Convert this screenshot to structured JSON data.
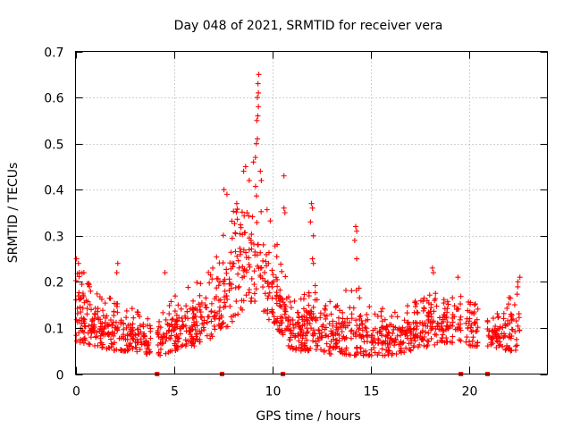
{
  "chart_data": {
    "type": "scatter",
    "title": "Day 048 of 2021, SRMTID for receiver vera",
    "xlabel": "GPS time / hours",
    "ylabel": "SRMTID / TECUs",
    "xlim": [
      0,
      24
    ],
    "ylim": [
      0,
      0.7
    ],
    "x_ticks": [
      0,
      5,
      10,
      15,
      20
    ],
    "x_tick_labels": [
      "0",
      "5",
      "10",
      "15",
      "20"
    ],
    "y_ticks": [
      0,
      0.1,
      0.2,
      0.3,
      0.4,
      0.5,
      0.6,
      0.7
    ],
    "y_tick_labels": [
      "0",
      "0.1",
      "0.2",
      "0.3",
      "0.4",
      "0.5",
      "0.6",
      "0.7"
    ],
    "grid": true,
    "marker": "+",
    "color": "#ff0000",
    "gap_markers": [
      4.15,
      7.45,
      10.55,
      19.6,
      20.95
    ],
    "envelope": [
      {
        "x": 0.0,
        "lo": 0.07,
        "hi": 0.25
      },
      {
        "x": 1.0,
        "lo": 0.06,
        "hi": 0.18
      },
      {
        "x": 2.0,
        "lo": 0.05,
        "hi": 0.16
      },
      {
        "x": 3.0,
        "lo": 0.05,
        "hi": 0.14
      },
      {
        "x": 3.8,
        "lo": 0.04,
        "hi": 0.12
      },
      {
        "x": 4.3,
        "lo": 0.04,
        "hi": 0.13
      },
      {
        "x": 5.0,
        "lo": 0.05,
        "hi": 0.17
      },
      {
        "x": 6.0,
        "lo": 0.06,
        "hi": 0.2
      },
      {
        "x": 7.0,
        "lo": 0.08,
        "hi": 0.24
      },
      {
        "x": 7.7,
        "lo": 0.1,
        "hi": 0.33
      },
      {
        "x": 8.5,
        "lo": 0.14,
        "hi": 0.42
      },
      {
        "x": 9.2,
        "lo": 0.16,
        "hi": 0.42
      },
      {
        "x": 9.8,
        "lo": 0.12,
        "hi": 0.36
      },
      {
        "x": 10.4,
        "lo": 0.09,
        "hi": 0.26
      },
      {
        "x": 11.0,
        "lo": 0.05,
        "hi": 0.16
      },
      {
        "x": 12.0,
        "lo": 0.05,
        "hi": 0.2
      },
      {
        "x": 13.0,
        "lo": 0.04,
        "hi": 0.16
      },
      {
        "x": 14.3,
        "lo": 0.04,
        "hi": 0.2
      },
      {
        "x": 15.0,
        "lo": 0.04,
        "hi": 0.15
      },
      {
        "x": 16.0,
        "lo": 0.04,
        "hi": 0.14
      },
      {
        "x": 17.0,
        "lo": 0.05,
        "hi": 0.15
      },
      {
        "x": 18.0,
        "lo": 0.06,
        "hi": 0.18
      },
      {
        "x": 19.0,
        "lo": 0.07,
        "hi": 0.17
      },
      {
        "x": 20.0,
        "lo": 0.06,
        "hi": 0.17
      },
      {
        "x": 21.2,
        "lo": 0.06,
        "hi": 0.12
      },
      {
        "x": 22.0,
        "lo": 0.05,
        "hi": 0.17
      },
      {
        "x": 22.6,
        "lo": 0.05,
        "hi": 0.2
      }
    ],
    "data_gaps": [
      [
        3.85,
        4.15
      ],
      [
        19.6,
        19.85
      ],
      [
        20.5,
        20.95
      ]
    ],
    "outliers": [
      {
        "x": 0.05,
        "y": 0.25
      },
      {
        "x": 0.15,
        "y": 0.24
      },
      {
        "x": 0.2,
        "y": 0.22
      },
      {
        "x": 2.15,
        "y": 0.24
      },
      {
        "x": 2.1,
        "y": 0.22
      },
      {
        "x": 4.55,
        "y": 0.22
      },
      {
        "x": 7.55,
        "y": 0.4
      },
      {
        "x": 7.7,
        "y": 0.39
      },
      {
        "x": 8.2,
        "y": 0.37
      },
      {
        "x": 8.55,
        "y": 0.44
      },
      {
        "x": 8.65,
        "y": 0.45
      },
      {
        "x": 9.05,
        "y": 0.46
      },
      {
        "x": 9.15,
        "y": 0.47
      },
      {
        "x": 9.2,
        "y": 0.5
      },
      {
        "x": 9.25,
        "y": 0.51
      },
      {
        "x": 9.22,
        "y": 0.55
      },
      {
        "x": 9.27,
        "y": 0.56
      },
      {
        "x": 9.3,
        "y": 0.58
      },
      {
        "x": 9.25,
        "y": 0.6
      },
      {
        "x": 9.3,
        "y": 0.61
      },
      {
        "x": 9.28,
        "y": 0.63
      },
      {
        "x": 9.32,
        "y": 0.65
      },
      {
        "x": 9.4,
        "y": 0.44
      },
      {
        "x": 9.45,
        "y": 0.42
      },
      {
        "x": 10.6,
        "y": 0.43
      },
      {
        "x": 10.6,
        "y": 0.36
      },
      {
        "x": 10.65,
        "y": 0.35
      },
      {
        "x": 12.0,
        "y": 0.37
      },
      {
        "x": 12.05,
        "y": 0.36
      },
      {
        "x": 11.95,
        "y": 0.33
      },
      {
        "x": 12.1,
        "y": 0.3
      },
      {
        "x": 12.05,
        "y": 0.25
      },
      {
        "x": 12.1,
        "y": 0.24
      },
      {
        "x": 14.25,
        "y": 0.32
      },
      {
        "x": 14.3,
        "y": 0.31
      },
      {
        "x": 14.2,
        "y": 0.29
      },
      {
        "x": 14.3,
        "y": 0.25
      },
      {
        "x": 18.15,
        "y": 0.23
      },
      {
        "x": 18.2,
        "y": 0.22
      },
      {
        "x": 19.45,
        "y": 0.21
      },
      {
        "x": 22.6,
        "y": 0.21
      },
      {
        "x": 22.5,
        "y": 0.2
      }
    ]
  }
}
